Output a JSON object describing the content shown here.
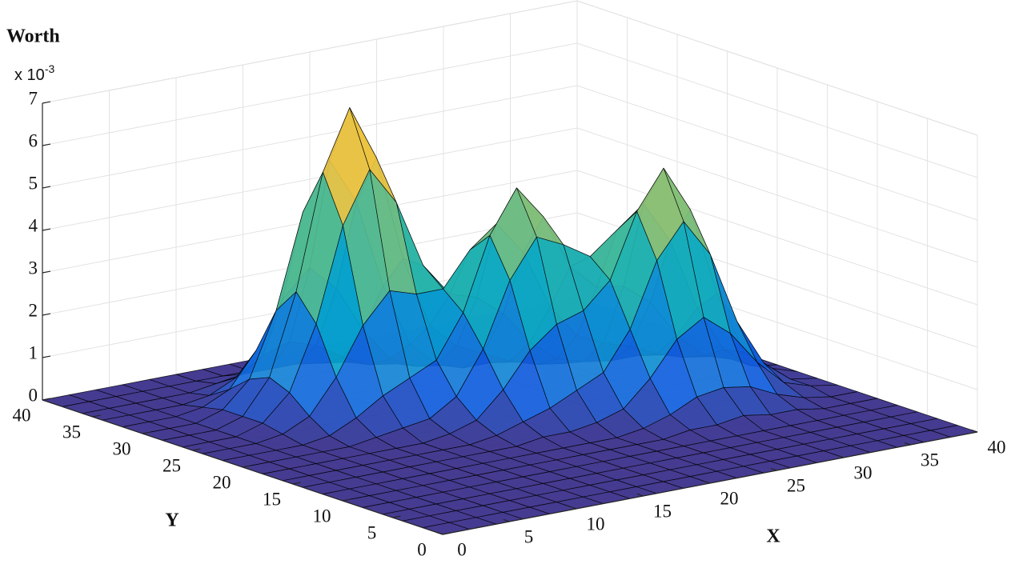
{
  "chart_data": {
    "type": "surface",
    "zlabel": "Worth",
    "z_scale_base": "x 10",
    "z_scale_power": "-3",
    "xlabel": "X",
    "ylabel": "Y",
    "x": [
      0,
      2,
      4,
      6,
      8,
      10,
      12,
      14,
      16,
      18,
      20,
      22,
      24,
      26,
      28,
      30,
      32,
      34,
      36,
      38,
      40
    ],
    "y": [
      0,
      2,
      4,
      6,
      8,
      10,
      12,
      14,
      16,
      18,
      20,
      22,
      24,
      26,
      28,
      30,
      32,
      34,
      36,
      38,
      40
    ],
    "z": [
      [
        0,
        0,
        0,
        0,
        0,
        0,
        0,
        0,
        0,
        0,
        0,
        0,
        0,
        0,
        0,
        0,
        0,
        0,
        0,
        0,
        0
      ],
      [
        0,
        0,
        0,
        0,
        0,
        0,
        0,
        0,
        0,
        0,
        0,
        0,
        0,
        0,
        0,
        0,
        0,
        0,
        0,
        0,
        0
      ],
      [
        0,
        0,
        0,
        0,
        0,
        0,
        0,
        0,
        0,
        0,
        0,
        0,
        0,
        0,
        0,
        0,
        0,
        0,
        0,
        0,
        0
      ],
      [
        0,
        0,
        0,
        0,
        0,
        0,
        0,
        0,
        0,
        0,
        0,
        0,
        0,
        0,
        0,
        0,
        0,
        0,
        0,
        0,
        0
      ],
      [
        0,
        0,
        0,
        0,
        0,
        0,
        0,
        0,
        0,
        0,
        0,
        0,
        0,
        0,
        0,
        0,
        0,
        0,
        0,
        0,
        0
      ],
      [
        0,
        0,
        0,
        0,
        0,
        0,
        0,
        0,
        0,
        0,
        0,
        0,
        0,
        0.1,
        0.1,
        0.2,
        0.1,
        0.1,
        0,
        0,
        0
      ],
      [
        0,
        0,
        0,
        0,
        0,
        0,
        0,
        0,
        0,
        0,
        0,
        0,
        0.1,
        0.3,
        0.6,
        0.7,
        0.6,
        0.3,
        0.1,
        0,
        0
      ],
      [
        0,
        0,
        0,
        0,
        0,
        0,
        0,
        0,
        0,
        0.1,
        0.1,
        0.2,
        0.4,
        1.0,
        1.8,
        2.2,
        1.7,
        0.9,
        0.3,
        0.1,
        0
      ],
      [
        0,
        0,
        0,
        0,
        0,
        0,
        0,
        0,
        0.1,
        0.3,
        0.5,
        0.8,
        1.1,
        2.0,
        3.5,
        4.3,
        3.4,
        1.7,
        0.6,
        0.1,
        0
      ],
      [
        0,
        0,
        0,
        0,
        0,
        0,
        0,
        0.1,
        0.3,
        0.9,
        1.7,
        2.2,
        2.4,
        3.0,
        4.5,
        5.4,
        4.3,
        2.2,
        0.7,
        0.2,
        0
      ],
      [
        0,
        0,
        0,
        0,
        0,
        0.1,
        0.2,
        0.3,
        0.7,
        1.7,
        3.2,
        4.1,
        3.8,
        3.4,
        3.9,
        4.4,
        3.4,
        1.7,
        0.6,
        0.1,
        0
      ],
      [
        0,
        0,
        0,
        0,
        0.1,
        0.4,
        0.8,
        1.1,
        1.4,
        2.4,
        4.1,
        5.1,
        4.3,
        3.0,
        2.4,
        2.3,
        1.8,
        0.9,
        0.3,
        0.1,
        0
      ],
      [
        0,
        0,
        0,
        0.1,
        0.4,
        1.2,
        2.3,
        3.0,
        2.8,
        2.8,
        3.6,
        4.1,
        3.3,
        1.9,
        1.1,
        0.8,
        0.6,
        0.3,
        0.1,
        0,
        0
      ],
      [
        0,
        0,
        0,
        0.2,
        0.8,
        2.3,
        4.5,
        5.7,
        4.8,
        3.2,
        2.4,
        2.2,
        1.7,
        0.9,
        0.4,
        0.2,
        0.1,
        0.1,
        0,
        0,
        0
      ],
      [
        0,
        0,
        0,
        0.2,
        1.0,
        2.9,
        5.6,
        7.0,
        5.7,
        3.2,
        1.5,
        0.9,
        0.6,
        0.3,
        0.1,
        0,
        0,
        0,
        0,
        0,
        0
      ],
      [
        0,
        0,
        0,
        0.2,
        0.8,
        2.3,
        4.5,
        5.6,
        4.5,
        2.4,
        0.9,
        0.3,
        0.1,
        0.1,
        0,
        0,
        0,
        0,
        0,
        0,
        0
      ],
      [
        0,
        0,
        0,
        0.1,
        0.4,
        1.2,
        2.3,
        2.9,
        2.3,
        1.2,
        0.4,
        0.1,
        0,
        0,
        0,
        0,
        0,
        0,
        0,
        0,
        0
      ],
      [
        0,
        0,
        0,
        0,
        0.1,
        0.4,
        0.8,
        1.0,
        0.8,
        0.4,
        0.1,
        0,
        0,
        0,
        0,
        0,
        0,
        0,
        0,
        0,
        0
      ],
      [
        0,
        0,
        0,
        0,
        0,
        0.1,
        0.2,
        0.2,
        0.2,
        0.1,
        0,
        0,
        0,
        0,
        0,
        0,
        0,
        0,
        0,
        0,
        0
      ],
      [
        0,
        0,
        0,
        0,
        0,
        0,
        0,
        0,
        0,
        0,
        0,
        0,
        0,
        0,
        0,
        0,
        0,
        0,
        0,
        0,
        0
      ],
      [
        0,
        0,
        0,
        0,
        0,
        0,
        0,
        0,
        0,
        0,
        0,
        0,
        0,
        0,
        0,
        0,
        0,
        0,
        0,
        0,
        0
      ]
    ],
    "xlim": [
      0,
      40
    ],
    "ylim": [
      0,
      40
    ],
    "zlim": [
      0,
      7
    ],
    "xticks": [
      0,
      5,
      10,
      15,
      20,
      25,
      30,
      35,
      40
    ],
    "yticks": [
      0,
      5,
      10,
      15,
      20,
      25,
      30,
      35,
      40
    ],
    "zticks": [
      0,
      1,
      2,
      3,
      4,
      5,
      6,
      7
    ],
    "grid": true,
    "colormap": [
      "#352a87",
      "#0f5cdd",
      "#1481d6",
      "#06a4ca",
      "#2eb7a4",
      "#87bf77",
      "#d1bb59",
      "#fec832",
      "#f9fb0e"
    ],
    "edge_color": "#000000"
  }
}
